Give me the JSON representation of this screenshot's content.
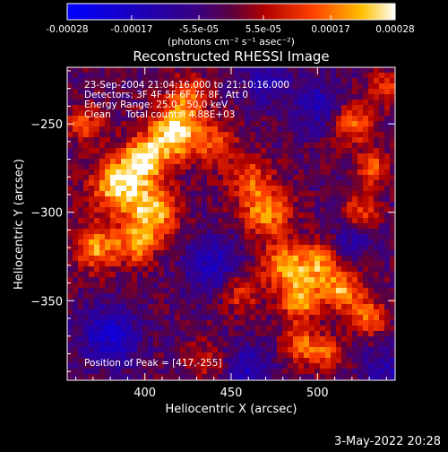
{
  "chart_data": {
    "type": "heatmap",
    "title": "Reconstructed RHESSI Image",
    "xlabel": "Heliocentric X (arcsec)",
    "ylabel": "Heliocentric Y (arcsec)",
    "xlim": [
      355,
      545
    ],
    "ylim": [
      -395,
      -218
    ],
    "xticks": [
      400,
      450,
      500
    ],
    "yticks": [
      -250,
      -300,
      -350
    ],
    "colorbar": {
      "label": "(photons cm⁻² s⁻¹ asec⁻²)",
      "range": [
        -0.00028,
        0.00028
      ],
      "tick_values": [
        -0.00028,
        -0.00017,
        -5.5e-05,
        5.5e-05,
        0.00017,
        0.00028
      ],
      "tick_labels": [
        "-0.00028",
        "-0.00017",
        "-5.5e-05",
        "5.5e-05",
        "0.00017",
        "0.00028"
      ]
    },
    "annotations": {
      "time": "23-Sep-2004 21:04:16.000 to 21:10:16.000",
      "detectors": "Detectors: 3F 4F 5F 6F 7F 8F, Att 0",
      "energy": "Energy Range: 25.0 - 50.0 keV",
      "clean_counts": "Clean     Total counts: 4.88E+03",
      "peak": "Position of Peak = [417,-255]"
    },
    "peak": [
      417,
      -255
    ],
    "colors": {
      "min": "#0000ff",
      "mid": "#2a0070",
      "high": "#ff3000",
      "max": "#ffffff"
    }
  },
  "footer": {
    "date": "3-May-2022 20:28"
  }
}
